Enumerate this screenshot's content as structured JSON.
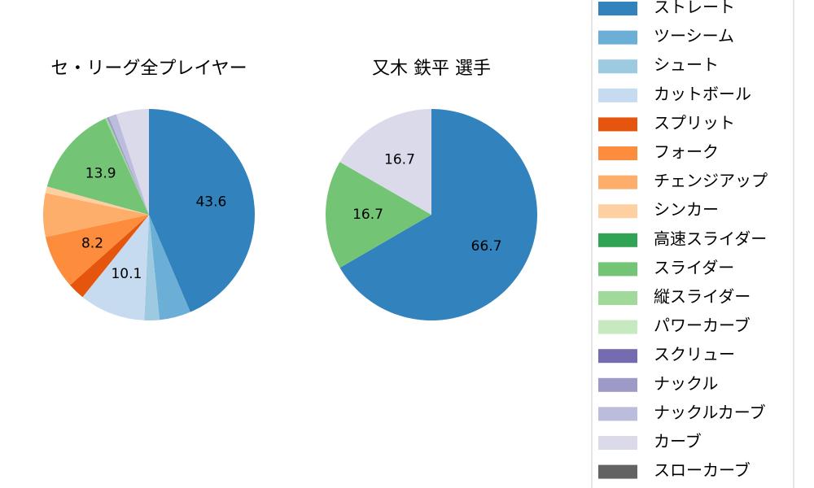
{
  "chart_data": [
    {
      "type": "pie",
      "title": "セ・リーグ全プレイヤー",
      "categories": [
        "ストレート",
        "ツーシーム",
        "シュート",
        "カットボール",
        "スプリット",
        "フォーク",
        "チェンジアップ",
        "シンカー",
        "高速スライダー",
        "スライダー",
        "縦スライダー",
        "パワーカーブ",
        "スクリュー",
        "ナックル",
        "ナックルカーブ",
        "カーブ",
        "スローカーブ"
      ],
      "colors": [
        "#3182bd",
        "#6baed6",
        "#9ecae1",
        "#c6dbef",
        "#e6550d",
        "#fd8d3c",
        "#fdae6b",
        "#fdd0a2",
        "#31a354",
        "#74c476",
        "#a1d99b",
        "#c7e9c0",
        "#756bb1",
        "#9e9ac8",
        "#bcbddc",
        "#dadaeb",
        "#636363"
      ],
      "values": [
        43.6,
        4.8,
        2.3,
        10.1,
        2.6,
        8.2,
        6.7,
        1.0,
        0,
        13.9,
        0.3,
        0,
        0,
        0.3,
        1.2,
        5.0,
        0
      ],
      "value_labels": [
        "43.6",
        null,
        null,
        "10.1",
        null,
        "8.2",
        null,
        null,
        null,
        "13.9",
        null,
        null,
        null,
        null,
        null,
        null,
        null
      ]
    },
    {
      "type": "pie",
      "title": "又木 鉄平  選手",
      "categories": [
        "ストレート",
        "スライダー",
        "カーブ"
      ],
      "colors": [
        "#3182bd",
        "#74c476",
        "#dadaeb"
      ],
      "values": [
        66.7,
        16.7,
        16.7
      ],
      "value_labels": [
        "66.7",
        "16.7",
        "16.7"
      ]
    }
  ]
}
